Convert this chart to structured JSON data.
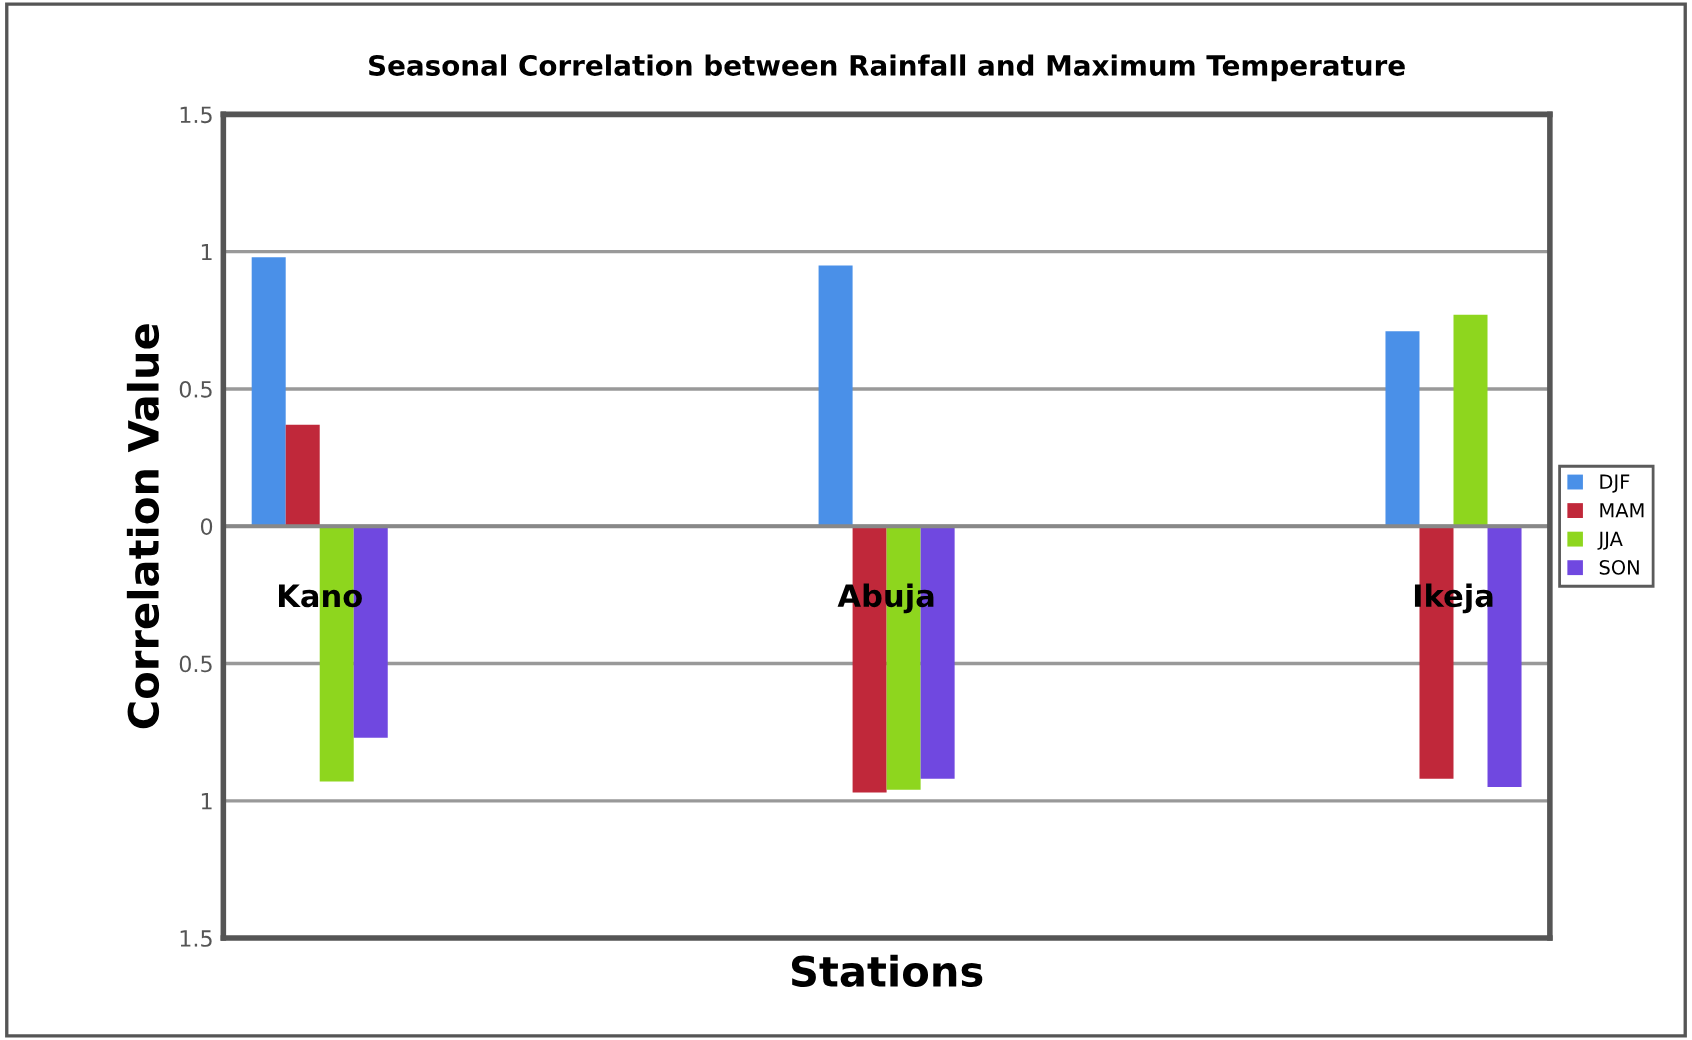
{
  "chart_data": {
    "type": "bar",
    "title": "Seasonal Correlation between Rainfall and Maximum Temperature",
    "xlabel": "Stations",
    "ylabel": "Correlation Value",
    "categories": [
      "Kano",
      "Abuja",
      "Ikeja"
    ],
    "series": [
      {
        "name": "DJF",
        "color": "#4a90e8",
        "values": [
          0.98,
          0.95,
          0.71
        ]
      },
      {
        "name": "MAM",
        "color": "#c0283a",
        "values": [
          0.37,
          -0.97,
          -0.92
        ]
      },
      {
        "name": "JJA",
        "color": "#8ed61e",
        "values": [
          -0.93,
          -0.96,
          0.77
        ]
      },
      {
        "name": "SON",
        "color": "#7048e0",
        "values": [
          -0.77,
          -0.92,
          -0.95
        ]
      }
    ],
    "ylim": [
      -1.5,
      1.5
    ],
    "yticks": [
      {
        "value": -1.5,
        "label": "1.5"
      },
      {
        "value": -1,
        "label": "1"
      },
      {
        "value": -0.5,
        "label": "0.5"
      },
      0,
      0.5,
      1,
      1.5
    ],
    "grid": "y",
    "legend": "right"
  }
}
